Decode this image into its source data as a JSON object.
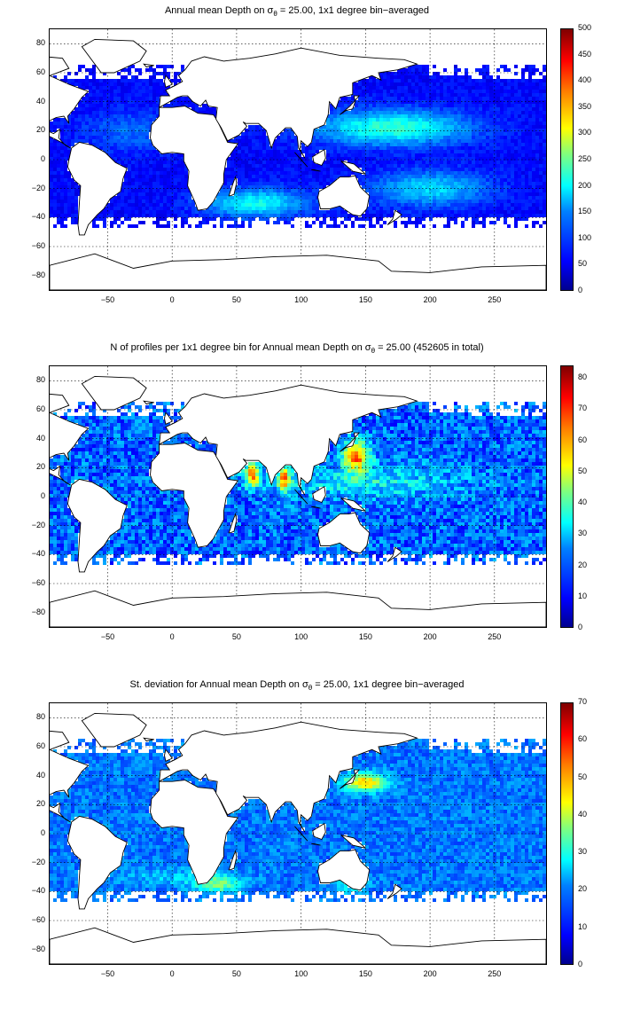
{
  "panels": [
    {
      "title_pre": "Annual mean Depth on ",
      "sigma": "σ",
      "theta": "θ",
      "title_post": " = 25.00, 1x1 degree bin−averaged",
      "colorbar_ticks": [
        "500",
        "450",
        "400",
        "350",
        "300",
        "250",
        "200",
        "150",
        "100",
        "50",
        "0"
      ]
    },
    {
      "title_pre": "N of profiles per 1x1 degree bin for Annual mean Depth on ",
      "sigma": "σ",
      "theta": "θ",
      "title_post": " = 25.00 (452605 in total)",
      "colorbar_ticks": [
        "80",
        "70",
        "60",
        "50",
        "40",
        "30",
        "20",
        "10",
        "0"
      ]
    },
    {
      "title_pre": "St. deviation for Annual mean Depth on ",
      "sigma": "σ",
      "theta": "θ",
      "title_post": " = 25.00, 1x1 degree bin−averaged",
      "colorbar_ticks": [
        "70",
        "60",
        "50",
        "40",
        "30",
        "20",
        "10",
        "0"
      ]
    }
  ],
  "y_ticks": [
    "80",
    "60",
    "40",
    "20",
    "0",
    "−20",
    "−40",
    "−60",
    "−80"
  ],
  "x_ticks": [
    "−50",
    "0",
    "50",
    "100",
    "150",
    "200",
    "250"
  ],
  "colors": {
    "ocean_low": "#0000ff",
    "ocean_mid": "#00ffff",
    "ocean_high": "#ff0000",
    "land": "#ffffff",
    "coast": "#000000"
  }
}
